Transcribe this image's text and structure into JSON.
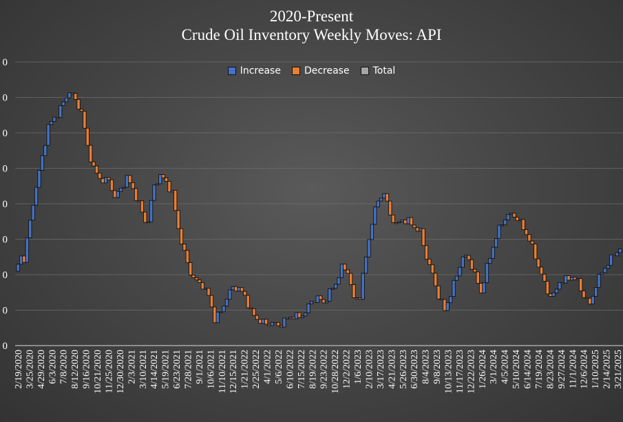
{
  "title_line1": "2020-Present",
  "title_line2": "Crude Oil Inventory Weekly Moves: API",
  "legend": [
    {
      "label": "Increase",
      "color": "#4472C4"
    },
    {
      "label": "Decrease",
      "color": "#ED7D31"
    },
    {
      "label": "Total",
      "color": "#A5A5A5"
    }
  ],
  "y_tick_labels": [
    "0",
    "0",
    "0",
    "0",
    "0",
    "0",
    "0",
    "0",
    "0"
  ],
  "chart_data": {
    "type": "waterfall",
    "title": "2020-Present Crude Oil Inventory Weekly Moves: API",
    "ylim": [
      0,
      8
    ],
    "grid": true,
    "legend_position": "top",
    "x_tick_labels": [
      "2/19/2020",
      "3/25/2020",
      "4/29/2020",
      "6/3/2020",
      "7/8/2020",
      "8/12/2020",
      "9/16/2020",
      "10/21/2020",
      "11/25/2020",
      "12/30/2020",
      "2/3/2021",
      "3/10/2021",
      "4/14/2021",
      "5/19/2021",
      "6/23/2021",
      "7/28/2021",
      "9/1/2021",
      "10/6/2021",
      "11/10/2021",
      "12/15/2021",
      "1/21/2022",
      "2/25/2022",
      "4/1/2022",
      "5/6/2022",
      "6/10/2022",
      "7/15/2022",
      "8/19/2022",
      "9/23/2022",
      "10/28/2022",
      "12/2/2022",
      "1/6/2023",
      "2/10/2023",
      "3/17/2023",
      "4/21/2023",
      "5/26/2023",
      "6/30/2023",
      "8/4/2023",
      "9/8/2023",
      "10/13/2023",
      "11/17/2023",
      "12/22/2023",
      "1/26/2024",
      "3/1/2024",
      "4/5/2024",
      "5/10/2024",
      "6/14/2024",
      "7/19/2024",
      "8/23/2024",
      "9/27/2024",
      "11/1/2024",
      "12/6/2024",
      "1/10/2025",
      "2/14/2025",
      "3/21/2025"
    ],
    "anchors": [
      [
        0,
        2.05
      ],
      [
        2,
        2.5
      ],
      [
        3,
        2.45
      ],
      [
        5,
        3.5
      ],
      [
        7,
        4.5
      ],
      [
        9,
        5.3
      ],
      [
        11,
        6.2
      ],
      [
        13,
        6.4
      ],
      [
        15,
        6.7
      ],
      [
        17,
        7.0
      ],
      [
        18,
        7.2
      ],
      [
        20,
        6.9
      ],
      [
        22,
        6.6
      ],
      [
        24,
        5.6
      ],
      [
        26,
        5.0
      ],
      [
        28,
        4.7
      ],
      [
        31,
        4.65
      ],
      [
        33,
        4.2
      ],
      [
        35,
        4.4
      ],
      [
        37,
        4.75
      ],
      [
        39,
        4.4
      ],
      [
        41,
        4.0
      ],
      [
        43,
        3.5
      ],
      [
        44,
        3.55
      ],
      [
        46,
        4.5
      ],
      [
        48,
        4.8
      ],
      [
        50,
        4.6
      ],
      [
        52,
        4.3
      ],
      [
        54,
        3.3
      ],
      [
        56,
        2.6
      ],
      [
        58,
        2.05
      ],
      [
        60,
        1.8
      ],
      [
        62,
        1.7
      ],
      [
        64,
        1.4
      ],
      [
        66,
        0.75
      ],
      [
        68,
        0.95
      ],
      [
        70,
        1.35
      ],
      [
        72,
        1.65
      ],
      [
        74,
        1.6
      ],
      [
        76,
        1.4
      ],
      [
        78,
        0.95
      ],
      [
        80,
        0.75
      ],
      [
        83,
        0.6
      ],
      [
        85,
        0.65
      ],
      [
        87,
        0.55
      ],
      [
        89,
        0.7
      ],
      [
        92,
        0.85
      ],
      [
        94,
        0.8
      ],
      [
        96,
        0.95
      ],
      [
        98,
        1.25
      ],
      [
        100,
        1.35
      ],
      [
        102,
        1.2
      ],
      [
        104,
        1.5
      ],
      [
        106,
        1.75
      ],
      [
        108,
        2.2
      ],
      [
        110,
        2.1
      ],
      [
        112,
        1.3
      ],
      [
        114,
        1.4
      ],
      [
        116,
        2.5
      ],
      [
        118,
        3.5
      ],
      [
        120,
        4.1
      ],
      [
        122,
        4.3
      ],
      [
        124,
        3.7
      ],
      [
        126,
        3.4
      ],
      [
        128,
        3.55
      ],
      [
        130,
        3.5
      ],
      [
        132,
        3.35
      ],
      [
        134,
        3.2
      ],
      [
        136,
        2.5
      ],
      [
        138,
        2.0
      ],
      [
        140,
        1.4
      ],
      [
        142,
        1.0
      ],
      [
        144,
        1.45
      ],
      [
        146,
        2.0
      ],
      [
        148,
        2.5
      ],
      [
        150,
        2.45
      ],
      [
        152,
        2.0
      ],
      [
        154,
        1.5
      ],
      [
        156,
        2.2
      ],
      [
        158,
        2.8
      ],
      [
        160,
        3.3
      ],
      [
        162,
        3.6
      ],
      [
        164,
        3.7
      ],
      [
        166,
        3.6
      ],
      [
        168,
        3.3
      ],
      [
        170,
        3.0
      ],
      [
        172,
        2.5
      ],
      [
        174,
        2.0
      ],
      [
        176,
        1.5
      ],
      [
        178,
        1.4
      ],
      [
        180,
        1.8
      ],
      [
        182,
        1.85
      ],
      [
        184,
        1.95
      ],
      [
        186,
        1.8
      ],
      [
        188,
        1.4
      ],
      [
        190,
        1.15
      ],
      [
        192,
        1.7
      ],
      [
        194,
        2.1
      ],
      [
        196,
        2.3
      ],
      [
        198,
        2.6
      ],
      [
        200,
        2.7
      ]
    ]
  }
}
